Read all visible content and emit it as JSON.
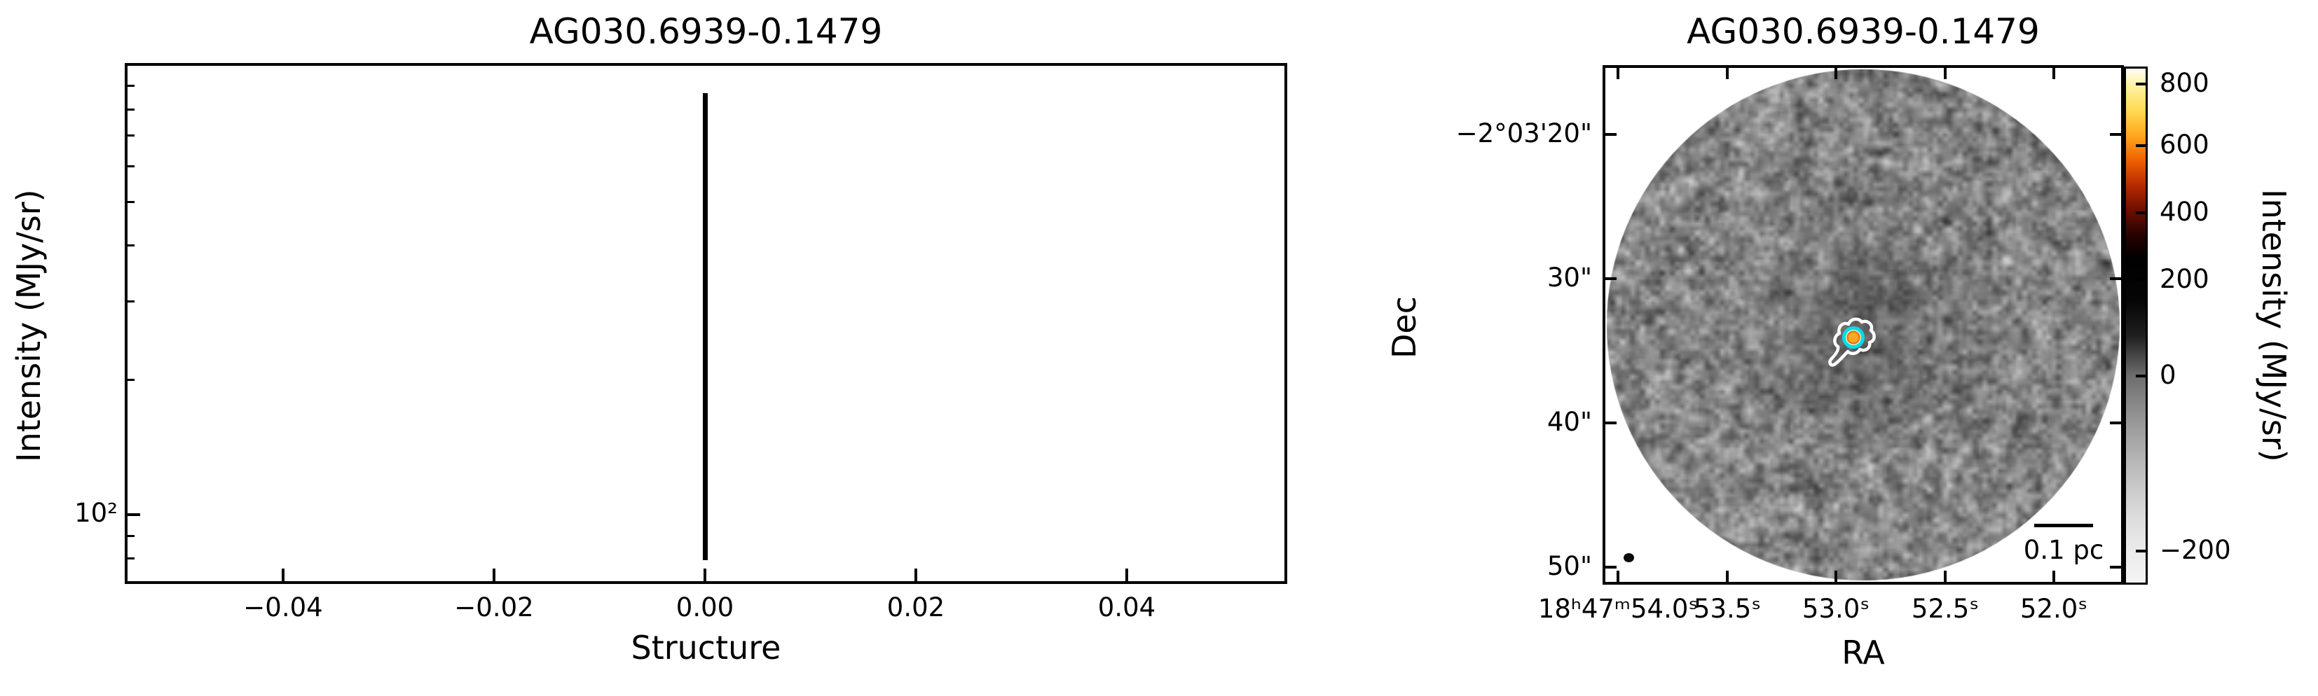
{
  "figure": {
    "left_panel": {
      "title": "AG030.6939-0.1479",
      "xlabel": "Structure",
      "ylabel": "Intensity (MJy/sr)",
      "x_tick_labels": [
        "−0.04",
        "−0.02",
        "0.00",
        "0.02",
        "0.04"
      ],
      "y_tick_label": "10²"
    },
    "right_panel": {
      "title": "AG030.6939-0.1479",
      "xlabel": "RA",
      "ylabel": "Dec",
      "ra_tick_labels": [
        "18ʰ47ᵐ54.0ˢ",
        "53.5ˢ",
        "53.0ˢ",
        "52.5ˢ",
        "52.0ˢ"
      ],
      "dec_tick_labels": [
        "−2°03'20\"",
        "30\"",
        "40\"",
        "50\""
      ],
      "scalebar_label": "0.1 pc",
      "colorbar": {
        "label": "Intensity (MJy/sr)",
        "tick_labels": [
          "800",
          "600",
          "400",
          "200",
          "0",
          "−200"
        ]
      }
    }
  },
  "chart_data": [
    {
      "type": "line",
      "title": "AG030.6939-0.1479",
      "xlabel": "Structure",
      "ylabel": "Intensity (MJy/sr)",
      "xlim": [
        -0.055,
        0.055
      ],
      "yscale": "log",
      "ylim": [
        75,
        950
      ],
      "x_tick_labels": [
        -0.04,
        -0.02,
        0.0,
        0.02,
        0.04
      ],
      "y_tick_labels": [
        "10^2"
      ],
      "grid": false,
      "legend": "none",
      "series": [
        {
          "name": "structure-intensity-range",
          "description": "single vertical black line at Structure = 0.00 spanning the intensity range of the structure",
          "x": [
            0.0,
            0.0
          ],
          "y": [
            80,
            760
          ],
          "color": "#000000"
        }
      ]
    },
    {
      "type": "heatmap",
      "title": "AG030.6939-0.1479",
      "xlabel": "RA",
      "ylabel": "Dec",
      "x_tick_labels": [
        "18h47m54.0s",
        "53.5s",
        "53.0s",
        "52.5s",
        "52.0s"
      ],
      "y_tick_labels": [
        "-2°03'20\"",
        "30\"",
        "40\"",
        "50\""
      ],
      "x_axis": "Right Ascension, decreasing to the right, ticks every 0.5s",
      "y_axis": "Declination, ticks every 10 arcsec",
      "image_description": "circular field (FoV radius ~25 arcsec) of correlated grayscale noise, grays ~#1a to #f0, mean ~#8a; slightly darker diffuse region near the center",
      "source": {
        "ra": "18h47m52.95s",
        "dec": "-2°03'34\"",
        "markers": "white irregular contour, cyan ring contour, orange/amber peak dot"
      },
      "beam": "small filled black ellipse at lower-left of field",
      "scalebar": {
        "label": "0.1 pc",
        "position": "lower right"
      },
      "colorbar": {
        "label": "Intensity (MJy/sr)",
        "tick_values": [
          800,
          600,
          400,
          200,
          0,
          -200
        ],
        "range_approx": [
          -300,
          870
        ],
        "stretch": "nonlinear (asinh-like; tick spacing widens toward negative values)",
        "colormap": "white-yellow-orange-red-black-gray-white (top to bottom)"
      },
      "legend": "none",
      "grid": false
    }
  ]
}
